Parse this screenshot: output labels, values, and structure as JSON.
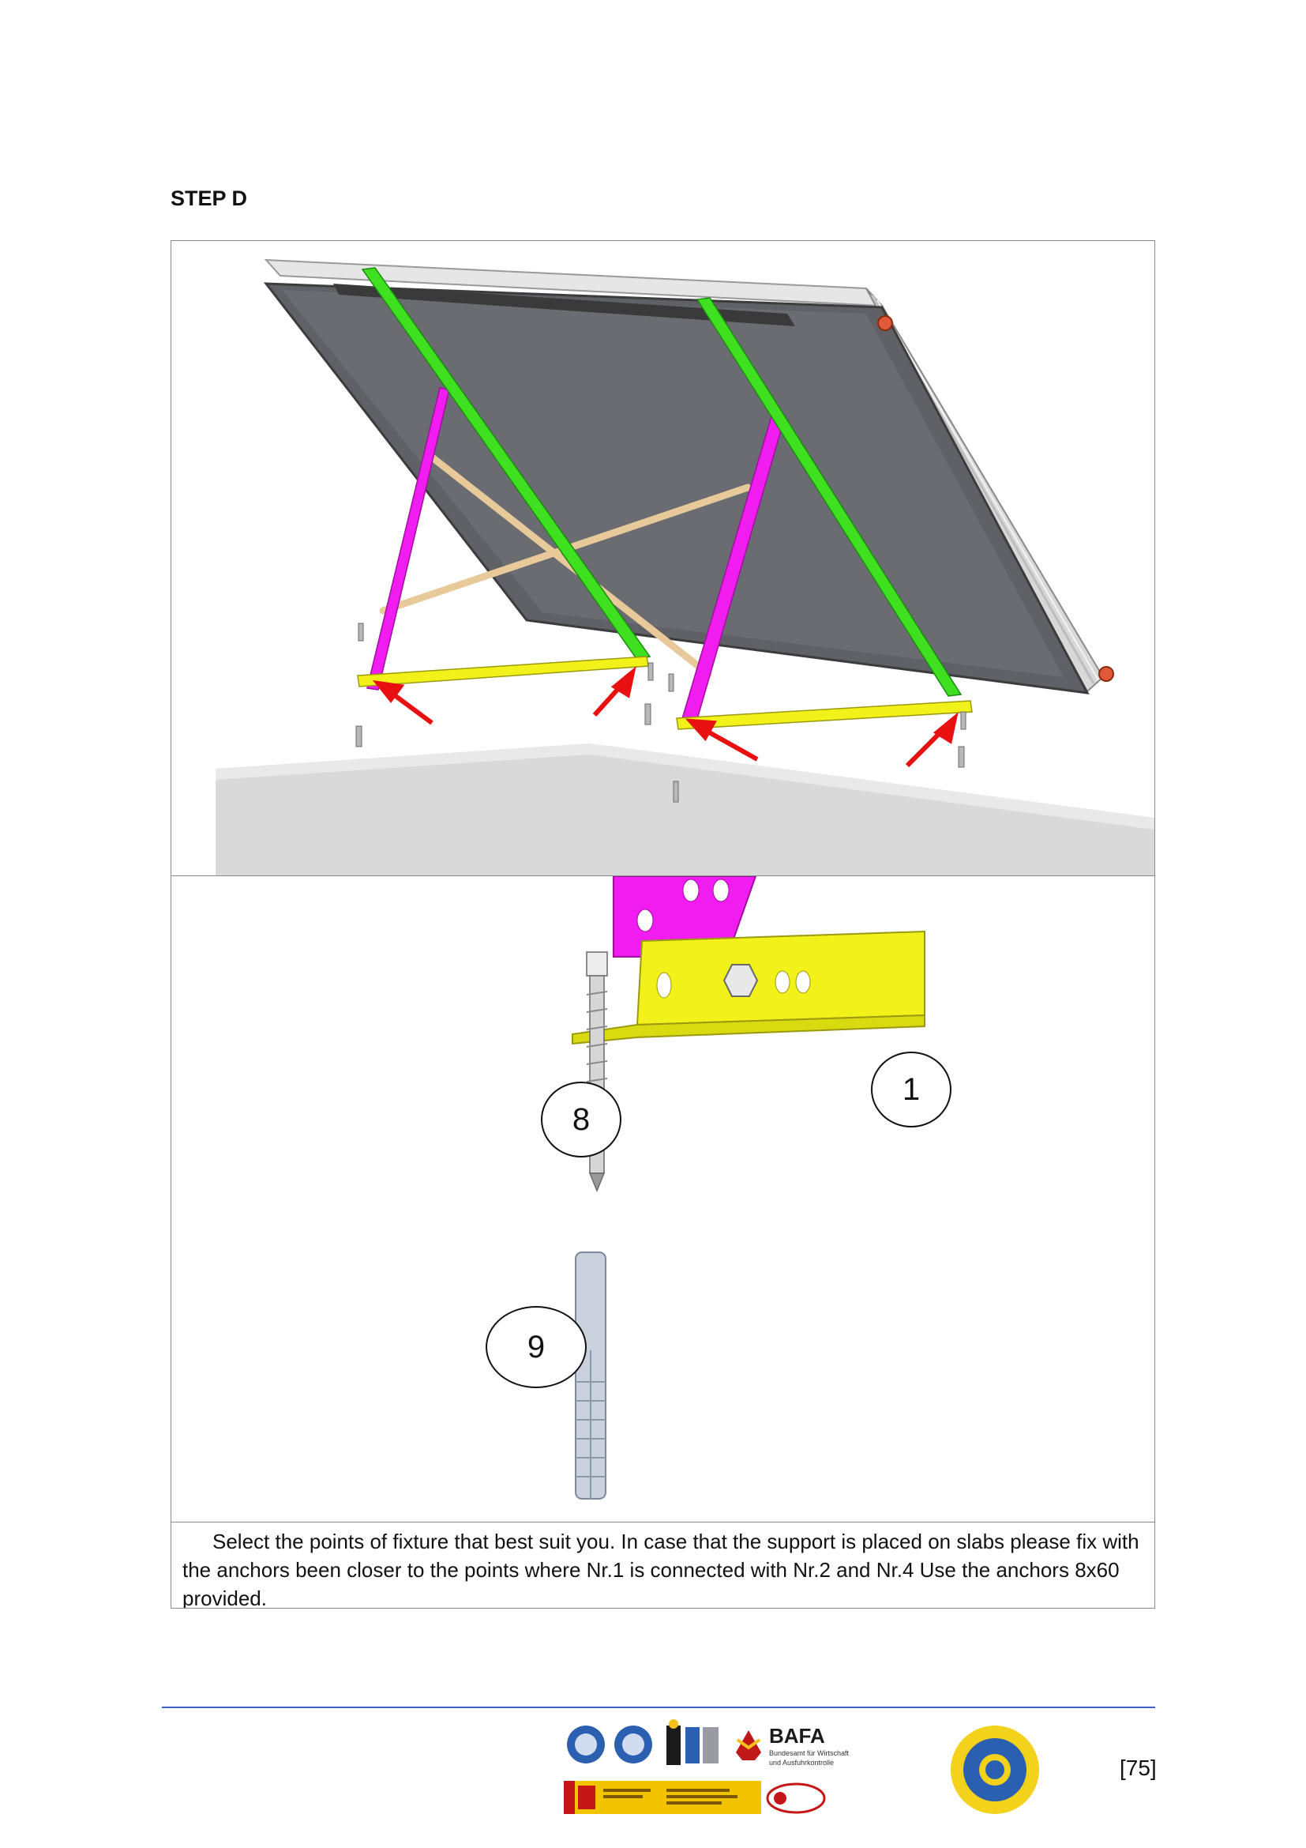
{
  "heading": "STEP D",
  "callouts": {
    "part_1": "1",
    "part_8": "8",
    "part_9": "9"
  },
  "instruction": "Select the points of fixture that best suit you. In case that the support is placed on slabs please fix with the anchors been closer to the points where Nr.1 is connected with Nr.2 and Nr.4 Use the anchors 8x60 provided.",
  "footer": {
    "page_number": "[75]",
    "logo_bafa": "BAFA",
    "logo_bafa_sub1": "Bundesamt für Wirtschaft",
    "logo_bafa_sub2": "und Ausfuhrkontrolle"
  },
  "colors": {
    "green_rail": "#3ee020",
    "magenta_leg": "#f01cf0",
    "yellow_base": "#f2f21a",
    "wood_brace": "#e8c99a",
    "panel_glass": "#5f6166",
    "arrow_red": "#e81010",
    "footer_rule": "#3f63c9"
  }
}
